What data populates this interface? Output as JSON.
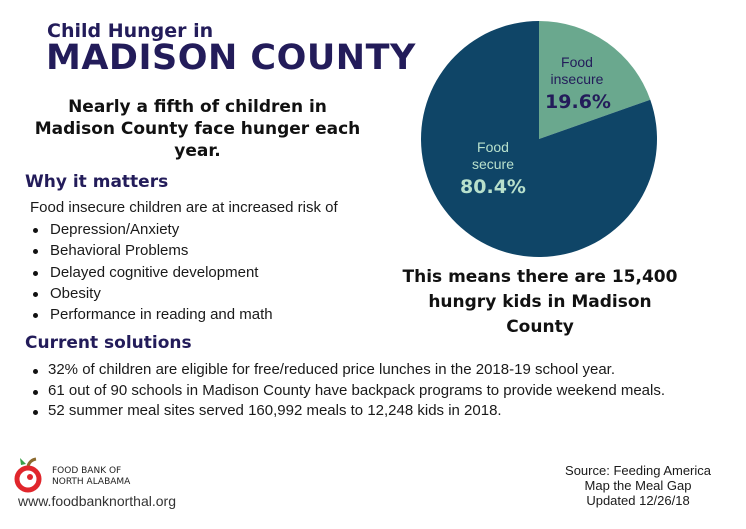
{
  "header": {
    "title_line1": "Child Hunger in",
    "title_line2": "MADISON COUNTY"
  },
  "lead": "Nearly a fifth of children in Madison County face hunger each year.",
  "why": {
    "heading": "Why it matters",
    "intro": "Food insecure children are at increased risk of",
    "items": [
      "Depression/Anxiety",
      "Behavioral Problems",
      "Delayed cognitive development",
      "Obesity",
      "Performance in reading and math"
    ]
  },
  "current": {
    "heading": "Current solutions",
    "items": [
      "32% of children are eligible for free/reduced price lunches in the 2018-19 school year.",
      "61 out of 90 schools in Madison County have backpack programs to provide weekend meals.",
      "52 summer meal sites served 160,992 meals to 12,248 kids in 2018."
    ]
  },
  "means": "This means there are 15,400 hungry kids in Madison County",
  "footer": {
    "org_line1": "FOOD BANK OF",
    "org_line2": "NORTH ALABAMA",
    "url": "www.foodbanknorthal.org",
    "source_line1": "Source: Feeding America",
    "source_line2": "Map the Meal Gap",
    "source_line3": "Updated 12/26/18"
  },
  "chart_data": {
    "type": "pie",
    "slices": [
      {
        "label_line1": "Food",
        "label_line2": "insecure",
        "value": 19.6,
        "value_label": "19.6%",
        "color": "#6aa88e",
        "label_color": "#231c5a"
      },
      {
        "label_line1": "Food",
        "label_line2": "secure",
        "value": 80.4,
        "value_label": "80.4%",
        "color": "#0f4567",
        "label_color": "#b8e0cc"
      }
    ]
  }
}
